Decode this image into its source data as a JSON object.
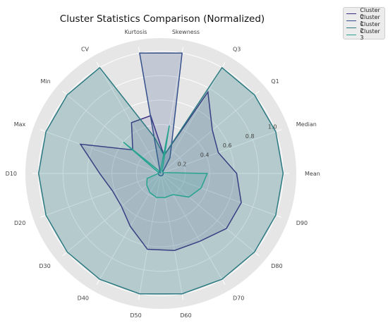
{
  "chart_data": {
    "type": "radar",
    "title": "Cluster Statistics Comparison (Normalized)",
    "axes": [
      "Mean",
      "Median",
      "Q1",
      "Q3",
      "Skewness",
      "Kurtosis",
      "CV",
      "Min",
      "Max",
      "D10",
      "D20",
      "D30",
      "D40",
      "D50",
      "D60",
      "D70",
      "D80",
      "D90"
    ],
    "radial_ticks": [
      0.2,
      0.4,
      0.6,
      0.8,
      1.0
    ],
    "radial_tick_labels": [
      "0.2",
      "0.4",
      "0.6",
      "0.8",
      "1.0"
    ],
    "rlim": [
      0,
      1.05
    ],
    "grid": true,
    "legend_position": "top-right",
    "series": [
      {
        "name": "Cluster 0",
        "color": "#3b2c82",
        "fill_opacity": 0.12,
        "values": [
          0.62,
          0.5,
          0.55,
          0.77,
          0.15,
          0.48,
          0.48,
          0.3,
          0.7,
          0.5,
          0.42,
          0.42,
          0.5,
          0.63,
          0.64,
          0.64,
          0.7,
          0.7
        ]
      },
      {
        "name": "Cluster 1",
        "color": "#34508c",
        "fill_opacity": 0.2,
        "values": [
          0.02,
          0.02,
          0.02,
          0.15,
          1.0,
          1.0,
          0.01,
          0.02,
          0.02,
          0.02,
          0.02,
          0.02,
          0.02,
          0.02,
          0.02,
          0.02,
          0.02,
          0.02
        ]
      },
      {
        "name": "Cluster 2",
        "color": "#2b7a82",
        "fill_opacity": 0.26,
        "values": [
          1.0,
          1.0,
          1.0,
          1.0,
          0.15,
          0.3,
          1.0,
          1.0,
          1.0,
          1.0,
          1.0,
          1.0,
          1.0,
          1.0,
          1.0,
          1.0,
          1.0,
          1.0
        ]
      },
      {
        "name": "Cluster 3",
        "color": "#27a390",
        "fill_opacity": 0.16,
        "values": [
          0.38,
          0.02,
          0.02,
          0.02,
          0.4,
          0.02,
          0.02,
          0.4,
          0.02,
          0.02,
          0.12,
          0.15,
          0.18,
          0.2,
          0.2,
          0.2,
          0.3,
          0.35
        ]
      }
    ]
  }
}
